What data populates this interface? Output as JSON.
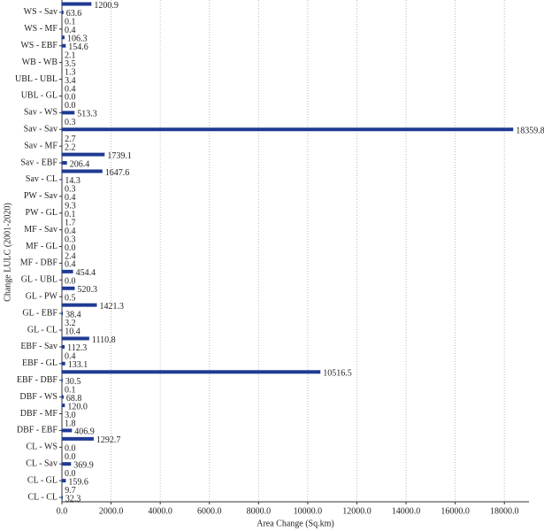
{
  "chart_data": {
    "type": "barh",
    "xlabel": "Area Change (Sq.km)",
    "ylabel": "Change LULC (2001-2020)",
    "color": "#1f3a93",
    "grid": true,
    "categories": [
      "CL - CL",
      null,
      "CL - GL",
      null,
      "CL - Sav",
      null,
      "CL - WS",
      null,
      "DBF - EBF",
      null,
      "DBF - MF",
      null,
      "DBF - WS",
      null,
      "EBF - DBF",
      null,
      "EBF - GL",
      null,
      "EBF - Sav",
      null,
      "GL - CL",
      null,
      "GL - EBF",
      null,
      "GL - PW",
      null,
      "GL - UBL",
      null,
      "MF - DBF",
      null,
      "MF - GL",
      null,
      "MF - Sav",
      null,
      "PW - GL",
      null,
      "PW - Sav",
      null,
      "Sav - CL",
      null,
      "Sav - EBF",
      null,
      "Sav - MF",
      null,
      "Sav - Sav",
      null,
      "Sav - WS",
      null,
      "UBL - GL",
      null,
      "UBL - UBL",
      null,
      "WB - WB",
      null,
      "WS - EBF",
      null,
      "WS - MF",
      null,
      "WS - Sav",
      null
    ],
    "values": [
      32.3,
      9.7,
      159.6,
      0.0,
      369.9,
      0.0,
      0.0,
      1292.7,
      406.9,
      1.8,
      3.0,
      120.0,
      68.8,
      0.1,
      30.5,
      10516.5,
      133.1,
      0.4,
      112.3,
      1110.8,
      10.4,
      3.2,
      38.4,
      1421.3,
      0.5,
      520.3,
      0.0,
      454.4,
      0.4,
      2.4,
      0.0,
      0.3,
      0.4,
      1.7,
      0.1,
      9.3,
      0.4,
      0.3,
      14.3,
      1647.6,
      206.4,
      1739.1,
      2.2,
      2.7,
      18359.8,
      0.3,
      513.3,
      0.0,
      0.0,
      0.4,
      3.4,
      1.3,
      3.5,
      2.1,
      154.6,
      106.3,
      0.4,
      0.1,
      63.6,
      1200.9
    ],
    "value_labels": [
      "32.3",
      "9.7",
      "159.6",
      "0.0",
      "369.9",
      "0.0",
      "0.0",
      "1292.7",
      "406.9",
      "1.8",
      "3.0",
      "120.0",
      "68.8",
      "0.1",
      "30.5",
      "10516.5",
      "133.1",
      "0.4",
      "112.3",
      "1110.8",
      "10.4",
      "3.2",
      "38.4",
      "1421.3",
      "0.5",
      "520.3",
      "0.0",
      "454.4",
      "0.4",
      "2.4",
      "0.0",
      "0.3",
      "0.4",
      "1.7",
      "0.1",
      "9.3",
      "0.4",
      "0.3",
      "14.3",
      "1647.6",
      "206.4",
      "1739.1",
      "2.2",
      "2.7",
      "18359.8",
      "0.3",
      "513.3",
      "0.0",
      "0.0",
      "0.4",
      "3.4",
      "1.3",
      "3.5",
      "2.1",
      "154.6",
      "106.3",
      "0.4",
      "0.1",
      "63.6",
      "1200.9"
    ],
    "xlim": [
      0,
      19000
    ],
    "xticks": [
      {
        "value": 0,
        "label": "0.0"
      },
      {
        "value": 2000,
        "label": "2000.0"
      },
      {
        "value": 4000,
        "label": "4000.0"
      },
      {
        "value": 6000,
        "label": "6000.0"
      },
      {
        "value": 8000,
        "label": "8000.0"
      },
      {
        "value": 10000,
        "label": "10000.0"
      },
      {
        "value": 12000,
        "label": "12000.0"
      },
      {
        "value": 14000,
        "label": "14000.0"
      },
      {
        "value": 16000,
        "label": "16000.0"
      },
      {
        "value": 18000,
        "label": "18000.0"
      }
    ]
  }
}
